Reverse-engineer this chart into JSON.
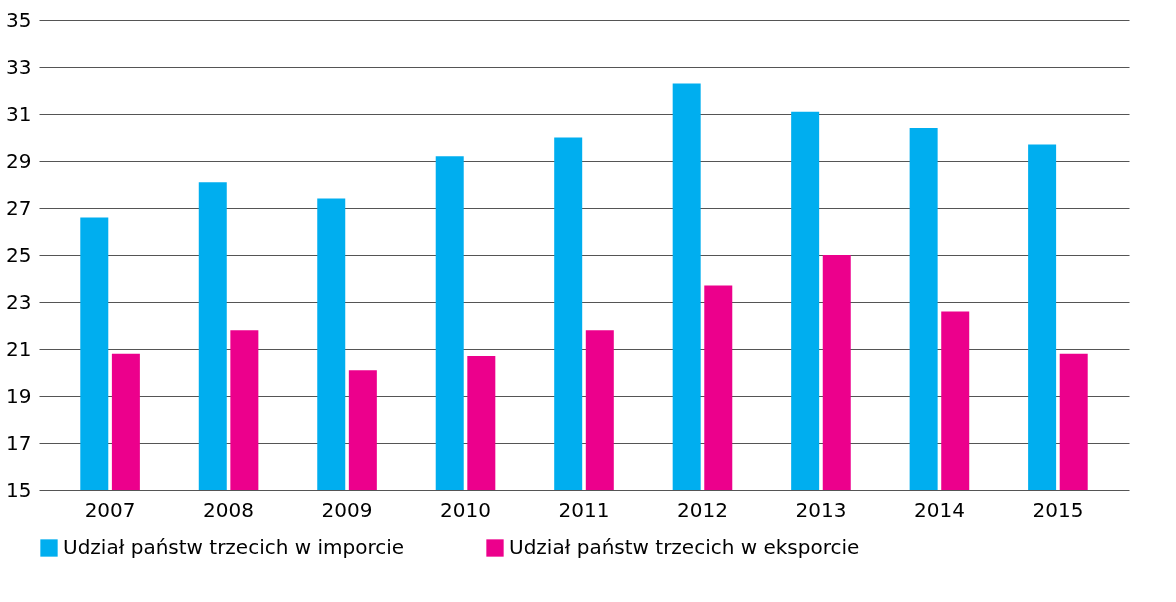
{
  "chart_data": {
    "type": "bar",
    "categories": [
      "2007",
      "2008",
      "2009",
      "2010",
      "2011",
      "2012",
      "2013",
      "2014",
      "2015"
    ],
    "series": [
      {
        "name": "Udział państw trzecich w imporcie",
        "color": "#00aeef",
        "values": [
          26.6,
          28.1,
          27.4,
          29.2,
          30.0,
          32.3,
          31.1,
          30.4,
          29.7
        ]
      },
      {
        "name": "Udział państw trzecich w eksporcie",
        "color": "#ec008c",
        "values": [
          20.8,
          21.8,
          20.1,
          20.7,
          21.8,
          23.7,
          25.0,
          22.6,
          20.8
        ]
      }
    ],
    "ylim": [
      15,
      35
    ],
    "yticks": [
      15,
      17,
      19,
      21,
      23,
      25,
      27,
      29,
      31,
      33,
      35
    ],
    "grid": "y",
    "legend": "bottom"
  }
}
